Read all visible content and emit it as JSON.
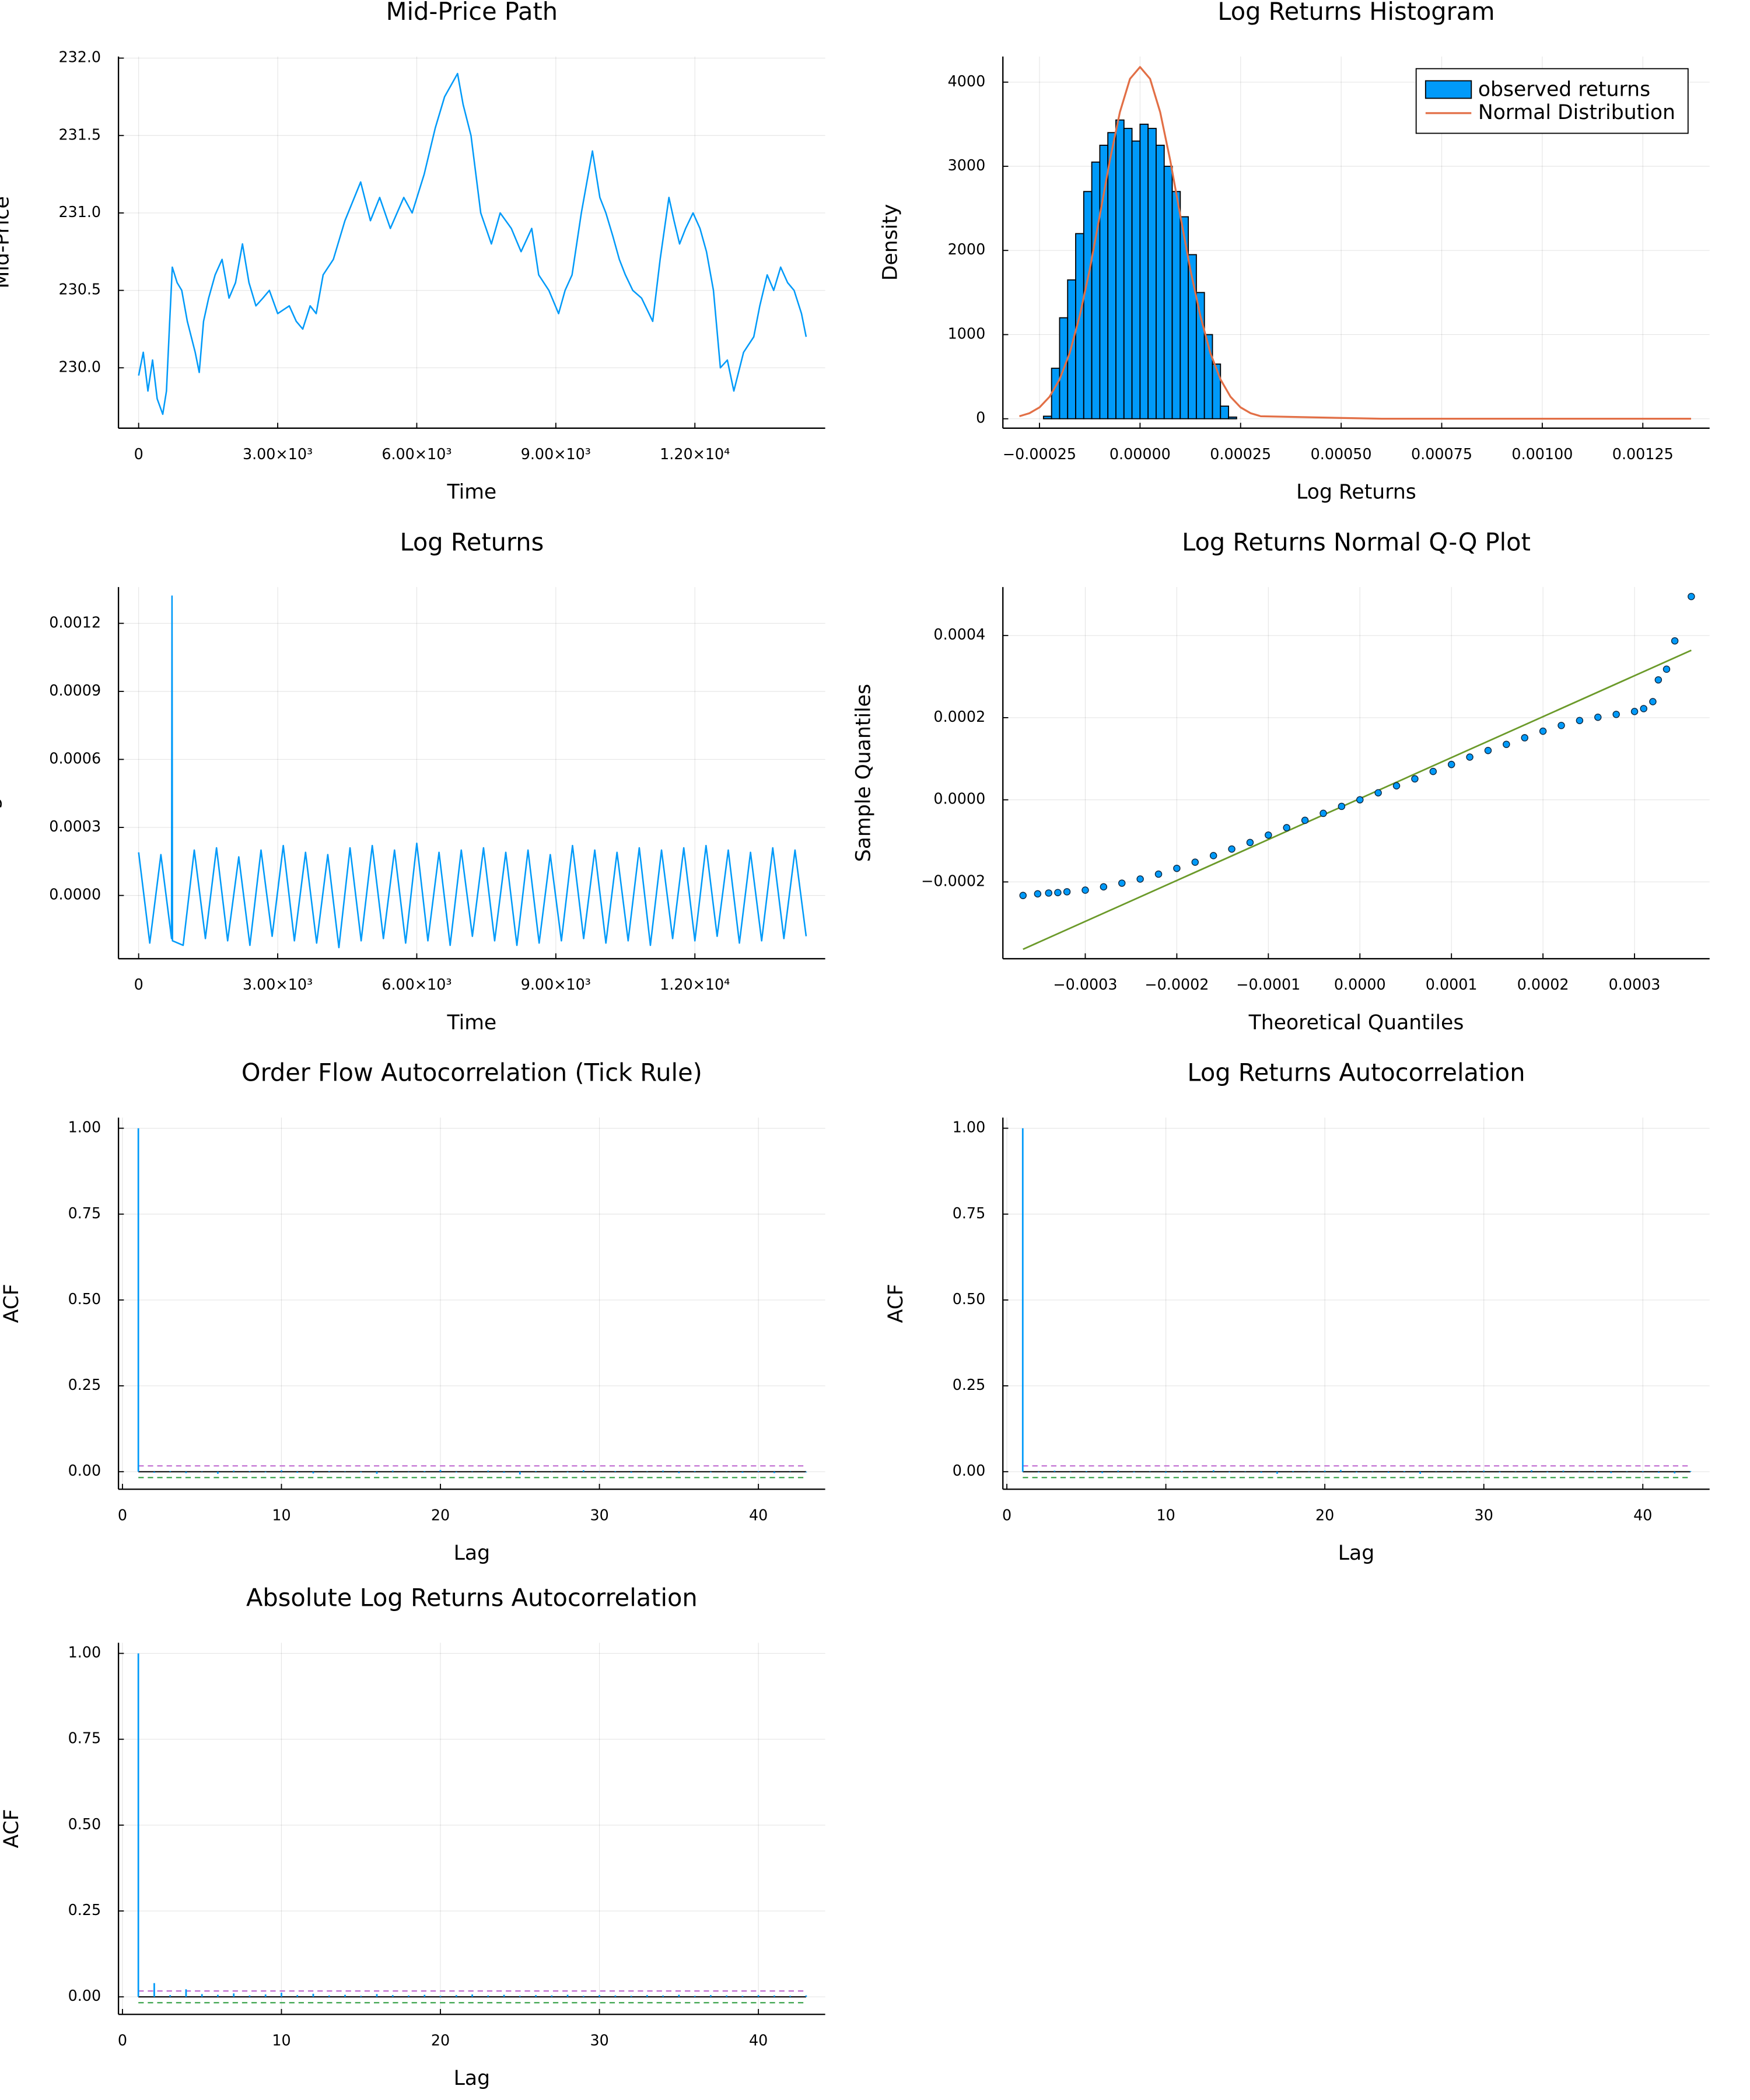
{
  "chart_data": [
    {
      "type": "line",
      "title": "Mid-Price Path",
      "xlabel": "Time",
      "ylabel": "Mid-Price",
      "color": "#009af9",
      "grid": true,
      "x": [
        0,
        100,
        200,
        300,
        400,
        520,
        600,
        670,
        726,
        830,
        930,
        1050,
        1220,
        1307,
        1400,
        1510,
        1650,
        1800,
        1950,
        2090,
        2240,
        2380,
        2530,
        2680,
        2820,
        3000,
        3250,
        3400,
        3540,
        3700,
        3830,
        3980,
        4200,
        4450,
        4790,
        5000,
        5200,
        5430,
        5720,
        5900,
        6160,
        6400,
        6600,
        6880,
        7000,
        7170,
        7380,
        7610,
        7800,
        8040,
        8250,
        8480,
        8630,
        8850,
        9060,
        9200,
        9350,
        9550,
        9790,
        9950,
        10080,
        10230,
        10370,
        10500,
        10660,
        10850,
        11090,
        11250,
        11440,
        11550,
        11670,
        11800,
        11960,
        12110,
        12250,
        12400,
        12550,
        12700,
        12840,
        13050,
        13270,
        13400,
        13560,
        13700,
        13850,
        14000,
        14140,
        14300,
        14400
      ],
      "values": [
        229.95,
        230.1,
        229.85,
        230.05,
        229.8,
        229.7,
        229.85,
        230.3,
        230.65,
        230.55,
        230.5,
        230.3,
        230.1,
        229.97,
        230.3,
        230.45,
        230.6,
        230.7,
        230.45,
        230.55,
        230.8,
        230.55,
        230.4,
        230.45,
        230.5,
        230.35,
        230.4,
        230.3,
        230.25,
        230.4,
        230.35,
        230.6,
        230.7,
        230.95,
        231.2,
        230.95,
        231.1,
        230.9,
        231.1,
        231.0,
        231.25,
        231.55,
        231.75,
        231.9,
        231.7,
        231.5,
        231.0,
        230.8,
        231.0,
        230.9,
        230.75,
        230.9,
        230.6,
        230.5,
        230.35,
        230.5,
        230.6,
        231.0,
        231.4,
        231.1,
        231.0,
        230.85,
        230.7,
        230.6,
        230.5,
        230.45,
        230.3,
        230.7,
        231.1,
        230.95,
        230.8,
        230.9,
        231.0,
        230.9,
        230.75,
        230.5,
        230.0,
        230.05,
        229.85,
        230.1,
        230.2,
        230.4,
        230.6,
        230.5,
        230.65,
        230.55,
        230.5,
        230.35,
        230.2
      ],
      "xlim": [
        -435,
        14811
      ],
      "ylim": [
        229.61,
        232.01
      ],
      "xticks": [
        0,
        {
          "value": 3000,
          "label": "3.00×10³"
        },
        {
          "value": 6000,
          "label": "6.00×10³"
        },
        {
          "value": 9000,
          "label": "9.00×10³"
        },
        {
          "value": 12000,
          "label": "1.20×10⁴"
        }
      ],
      "yticks": [
        {
          "value": 230,
          "label": "230.0"
        },
        {
          "value": 230.5,
          "label": "230.5"
        },
        {
          "value": 231,
          "label": "231.0"
        },
        {
          "value": 231.5,
          "label": "231.5"
        },
        {
          "value": 232,
          "label": "232.0"
        }
      ]
    },
    {
      "type": "histogram",
      "title": "Log Returns Histogram",
      "xlabel": "Log Returns",
      "ylabel": "Density",
      "grid": true,
      "legend": "top-right",
      "name": "observed returns",
      "color": "#009af9",
      "bins": [
        -0.00024,
        -0.00022,
        -0.0002,
        -0.00018,
        -0.00016,
        -0.00014,
        -0.00012,
        -0.0001,
        -8e-05,
        -6e-05,
        -4e-05,
        -2e-05,
        0,
        2e-05,
        4e-05,
        6e-05,
        8e-05,
        0.0001,
        0.00012,
        0.00014,
        0.00016,
        0.00018,
        0.0002,
        0.00022,
        0.00024
      ],
      "counts": [
        30,
        600,
        1200,
        1650,
        2200,
        2700,
        3050,
        3250,
        3400,
        3550,
        3450,
        3300,
        3500,
        3450,
        3250,
        3000,
        2700,
        2400,
        1950,
        1500,
        1000,
        650,
        150,
        20
      ],
      "curve": {
        "name": "Normal Distribution",
        "color": "#e26f46",
        "x": [
          -0.0003,
          -0.000275,
          -0.00025,
          -0.000225,
          -0.0002,
          -0.000175,
          -0.00015,
          -0.000125,
          -0.0001,
          -7.5e-05,
          -5e-05,
          -2.5e-05,
          0,
          2.5e-05,
          5e-05,
          7.5e-05,
          0.0001,
          0.000125,
          0.00015,
          0.000175,
          0.0002,
          0.000225,
          0.00025,
          0.000275,
          0.0003,
          0.0006,
          0.0009,
          0.0012,
          0.00137
        ],
        "values": [
          30,
          66,
          135,
          261,
          468,
          779,
          1222,
          1774,
          2417,
          3072,
          3645,
          4039,
          4180,
          4039,
          3645,
          3072,
          2417,
          1774,
          1222,
          779,
          468,
          261,
          135,
          66,
          30,
          0,
          0,
          0,
          0
        ]
      },
      "xlim": [
        -0.000341,
        0.001416
      ],
      "ylim": [
        -112,
        4304
      ],
      "xticks": [
        {
          "value": -0.00025,
          "label": "−0.00025"
        },
        {
          "value": 0,
          "label": "0.00000"
        },
        {
          "value": 0.00025,
          "label": "0.00025"
        },
        {
          "value": 0.0005,
          "label": "0.00050"
        },
        {
          "value": 0.00075,
          "label": "0.00075"
        },
        {
          "value": 0.001,
          "label": "0.00100"
        },
        {
          "value": 0.00125,
          "label": "0.00125"
        }
      ],
      "yticks": [
        0,
        1000,
        2000,
        3000,
        4000
      ]
    },
    {
      "type": "line",
      "title": "Log Returns",
      "xlabel": "Time",
      "ylabel": "Log Returns",
      "color": "#009af9",
      "grid": true,
      "x": [
        0,
        240,
        480,
        710,
        720,
        730,
        960,
        1200,
        1440,
        1680,
        1920,
        2160,
        2400,
        2640,
        2880,
        3120,
        3360,
        3600,
        3840,
        4080,
        4320,
        4560,
        4800,
        5040,
        5280,
        5520,
        5760,
        6000,
        6240,
        6480,
        6720,
        6960,
        7200,
        7440,
        7680,
        7920,
        8160,
        8400,
        8640,
        8880,
        9120,
        9360,
        9600,
        9840,
        10080,
        10320,
        10560,
        10800,
        11040,
        11280,
        11520,
        11760,
        12000,
        12240,
        12480,
        12720,
        12960,
        13200,
        13440,
        13680,
        13920,
        14160,
        14400
      ],
      "values": [
        0.00019,
        -0.00021,
        0.00018,
        -0.00019,
        0.00132,
        -0.0002,
        -0.00022,
        0.0002,
        -0.00019,
        0.00021,
        -0.0002,
        0.00017,
        -0.00022,
        0.0002,
        -0.00018,
        0.00022,
        -0.0002,
        0.00019,
        -0.00021,
        0.00018,
        -0.00023,
        0.00021,
        -0.0002,
        0.00022,
        -0.00019,
        0.0002,
        -0.00021,
        0.00023,
        -0.0002,
        0.00019,
        -0.00022,
        0.0002,
        -0.00018,
        0.00021,
        -0.0002,
        0.00019,
        -0.00022,
        0.0002,
        -0.00021,
        0.00018,
        -0.0002,
        0.00022,
        -0.00019,
        0.0002,
        -0.00021,
        0.00019,
        -0.0002,
        0.00021,
        -0.00022,
        0.0002,
        -0.00019,
        0.00021,
        -0.0002,
        0.00022,
        -0.00018,
        0.0002,
        -0.00021,
        0.00019,
        -0.0002,
        0.00021,
        -0.00019,
        0.0002,
        -0.00018
      ],
      "xlim": [
        -435,
        14811
      ],
      "ylim": [
        -0.000279,
        0.00136
      ],
      "xticks": [
        0,
        {
          "value": 3000,
          "label": "3.00×10³"
        },
        {
          "value": 6000,
          "label": "6.00×10³"
        },
        {
          "value": 9000,
          "label": "9.00×10³"
        },
        {
          "value": 12000,
          "label": "1.20×10⁴"
        }
      ],
      "yticks": [
        {
          "value": 0,
          "label": "0.0000"
        },
        {
          "value": 0.0003,
          "label": "0.0003"
        },
        {
          "value": 0.0006,
          "label": "0.0006"
        },
        {
          "value": 0.0009,
          "label": "0.0009"
        },
        {
          "value": 0.0012,
          "label": "0.0012"
        }
      ]
    },
    {
      "type": "scatter",
      "title": "Log Returns Normal Q-Q Plot",
      "xlabel": "Theoretical Quantiles",
      "ylabel": "Sample Quantiles",
      "color": "#009af9",
      "grid": true,
      "x": [
        -0.000368,
        -0.000352,
        -0.00034,
        -0.00033,
        -0.00032,
        -0.0003,
        -0.00028,
        -0.00026,
        -0.00024,
        -0.00022,
        -0.0002,
        -0.00018,
        -0.00016,
        -0.00014,
        -0.00012,
        -0.0001,
        -8e-05,
        -6e-05,
        -4e-05,
        -2e-05,
        0,
        2e-05,
        4e-05,
        6e-05,
        8e-05,
        0.0001,
        0.00012,
        0.00014,
        0.00016,
        0.00018,
        0.0002,
        0.00022,
        0.00024,
        0.00026,
        0.00028,
        0.0003,
        0.00031,
        0.00032,
        0.000326,
        0.000335,
        0.000344,
        0.000362
      ],
      "values": [
        -0.000233,
        -0.000229,
        -0.000227,
        -0.000226,
        -0.000224,
        -0.00022,
        -0.000212,
        -0.000203,
        -0.000193,
        -0.000181,
        -0.000167,
        -0.000152,
        -0.000136,
        -0.00012,
        -0.000104,
        -8.6e-05,
        -6.8e-05,
        -5e-05,
        -3.3e-05,
        -1.6e-05,
        0,
        1.7e-05,
        3.4e-05,
        5.1e-05,
        6.9e-05,
        8.6e-05,
        0.000104,
        0.00012,
        0.000135,
        0.000151,
        0.000167,
        0.000181,
        0.000193,
        0.000201,
        0.000208,
        0.000215,
        0.000222,
        0.000239,
        0.000292,
        0.000318,
        0.000387,
        0.000495
      ],
      "reference_line": {
        "color": "#6b9a2a",
        "x": [
          -0.000368,
          0.000362
        ],
        "values": [
          -0.000364,
          0.000364
        ]
      },
      "xlim": [
        -0.00039,
        0.000382
      ],
      "ylim": [
        -0.000387,
        0.000518
      ],
      "xticks": [
        {
          "value": -0.0003,
          "label": "−0.0003"
        },
        {
          "value": -0.0002,
          "label": "−0.0002"
        },
        {
          "value": -0.0001,
          "label": "−0.0001"
        },
        {
          "value": 0,
          "label": "0.0000"
        },
        {
          "value": 0.0001,
          "label": "0.0001"
        },
        {
          "value": 0.0002,
          "label": "0.0002"
        },
        {
          "value": 0.0003,
          "label": "0.0003"
        }
      ],
      "yticks": [
        {
          "value": -0.0002,
          "label": "−0.0002"
        },
        {
          "value": 0,
          "label": "0.0000"
        },
        {
          "value": 0.0002,
          "label": "0.0002"
        },
        {
          "value": 0.0004,
          "label": "0.0004"
        }
      ]
    },
    {
      "type": "stem",
      "title": "Order Flow Autocorrelation (Tick Rule)",
      "xlabel": "Lag",
      "ylabel": "ACF",
      "color": "#009af9",
      "grid": true,
      "x": [
        1,
        2,
        3,
        4,
        5,
        6,
        7,
        8,
        9,
        10,
        11,
        12,
        13,
        14,
        15,
        16,
        17,
        18,
        19,
        20,
        21,
        22,
        23,
        24,
        25,
        26,
        27,
        28,
        29,
        30,
        31,
        32,
        33,
        34,
        35,
        36,
        37,
        38,
        39,
        40,
        41,
        42,
        43
      ],
      "values": [
        1,
        -0.003,
        0.002,
        -0.004,
        0.001,
        -0.006,
        0.003,
        0.002,
        -0.002,
        0.004,
        -0.003,
        -0.005,
        0.002,
        0.001,
        -0.002,
        -0.006,
        0.003,
        -0.001,
        0.002,
        0.005,
        -0.002,
        0.001,
        0.003,
        -0.003,
        -0.008,
        0.002,
        0.001,
        -0.002,
        0.004,
        -0.001,
        0.002,
        -0.003,
        0.001,
        0.003,
        -0.004,
        0.002,
        -0.002,
        0.001,
        -0.003,
        0.002,
        -0.004,
        0.001,
        -0.002
      ],
      "conf_band": [
        0.017,
        -0.017
      ],
      "band_colors": [
        "#c271d2",
        "#3da44d"
      ],
      "xlim": [
        -0.25,
        44.2
      ],
      "ylim": [
        -0.051,
        1.031
      ],
      "xticks": [
        0,
        10,
        20,
        30,
        40
      ],
      "yticks": [
        {
          "value": 0,
          "label": "0.00"
        },
        {
          "value": 0.25,
          "label": "0.25"
        },
        {
          "value": 0.5,
          "label": "0.50"
        },
        {
          "value": 0.75,
          "label": "0.75"
        },
        {
          "value": 1,
          "label": "1.00"
        }
      ]
    },
    {
      "type": "stem",
      "title": "Log Returns Autocorrelation",
      "xlabel": "Lag",
      "ylabel": "ACF",
      "color": "#009af9",
      "grid": true,
      "x": [
        1,
        2,
        3,
        4,
        5,
        6,
        7,
        8,
        9,
        10,
        11,
        12,
        13,
        14,
        15,
        16,
        17,
        18,
        19,
        20,
        21,
        22,
        23,
        24,
        25,
        26,
        27,
        28,
        29,
        30,
        31,
        32,
        33,
        34,
        35,
        36,
        37,
        38,
        39,
        40,
        41,
        42,
        43
      ],
      "values": [
        1,
        -0.002,
        0.003,
        -0.001,
        0.002,
        -0.004,
        0.003,
        -0.002,
        0.001,
        -0.003,
        0.002,
        -0.001,
        0.004,
        -0.002,
        0.001,
        -0.003,
        -0.006,
        0.002,
        -0.001,
        0.003,
        0.005,
        -0.002,
        0.001,
        -0.003,
        0.002,
        -0.006,
        0.001,
        0.002,
        -0.001,
        0.003,
        -0.002,
        0.001,
        0.004,
        -0.002,
        0.003,
        -0.001,
        0.002,
        -0.004,
        0.001,
        0.002,
        -0.003,
        -0.005,
        0.002
      ],
      "conf_band": [
        0.017,
        -0.017
      ],
      "band_colors": [
        "#c271d2",
        "#3da44d"
      ],
      "xlim": [
        -0.25,
        44.2
      ],
      "ylim": [
        -0.051,
        1.031
      ],
      "xticks": [
        0,
        10,
        20,
        30,
        40
      ],
      "yticks": [
        {
          "value": 0,
          "label": "0.00"
        },
        {
          "value": 0.25,
          "label": "0.25"
        },
        {
          "value": 0.5,
          "label": "0.50"
        },
        {
          "value": 0.75,
          "label": "0.75"
        },
        {
          "value": 1,
          "label": "1.00"
        }
      ]
    },
    {
      "type": "stem",
      "title": "Absolute Log Returns Autocorrelation",
      "xlabel": "Lag",
      "ylabel": "ACF",
      "color": "#009af9",
      "grid": true,
      "x": [
        1,
        2,
        3,
        4,
        5,
        6,
        7,
        8,
        9,
        10,
        11,
        12,
        13,
        14,
        15,
        16,
        17,
        18,
        19,
        20,
        21,
        22,
        23,
        24,
        25,
        26,
        27,
        28,
        29,
        30,
        31,
        32,
        33,
        34,
        35,
        36,
        37,
        38,
        39,
        40,
        41,
        42,
        43
      ],
      "values": [
        1,
        0.04,
        0.005,
        0.022,
        0.008,
        0.006,
        0.01,
        0.004,
        0.007,
        0.012,
        0.005,
        0.009,
        0.004,
        0.006,
        0.003,
        0.008,
        0.005,
        0.004,
        0.006,
        0.003,
        0.005,
        0.007,
        0.004,
        0.006,
        0.003,
        0.005,
        0.004,
        0.006,
        0.003,
        0.005,
        0.004,
        0.003,
        0.005,
        0.004,
        0.006,
        0.003,
        0.005,
        0.004,
        0.003,
        0.005,
        0.004,
        0.003,
        0.004
      ],
      "conf_band": [
        0.017,
        -0.017
      ],
      "band_colors": [
        "#c271d2",
        "#3da44d"
      ],
      "xlim": [
        -0.25,
        44.2
      ],
      "ylim": [
        -0.051,
        1.031
      ],
      "xticks": [
        0,
        10,
        20,
        30,
        40
      ],
      "yticks": [
        {
          "value": 0,
          "label": "0.00"
        },
        {
          "value": 0.25,
          "label": "0.25"
        },
        {
          "value": 0.5,
          "label": "0.50"
        },
        {
          "value": 0.75,
          "label": "0.75"
        },
        {
          "value": 1,
          "label": "1.00"
        }
      ]
    }
  ]
}
